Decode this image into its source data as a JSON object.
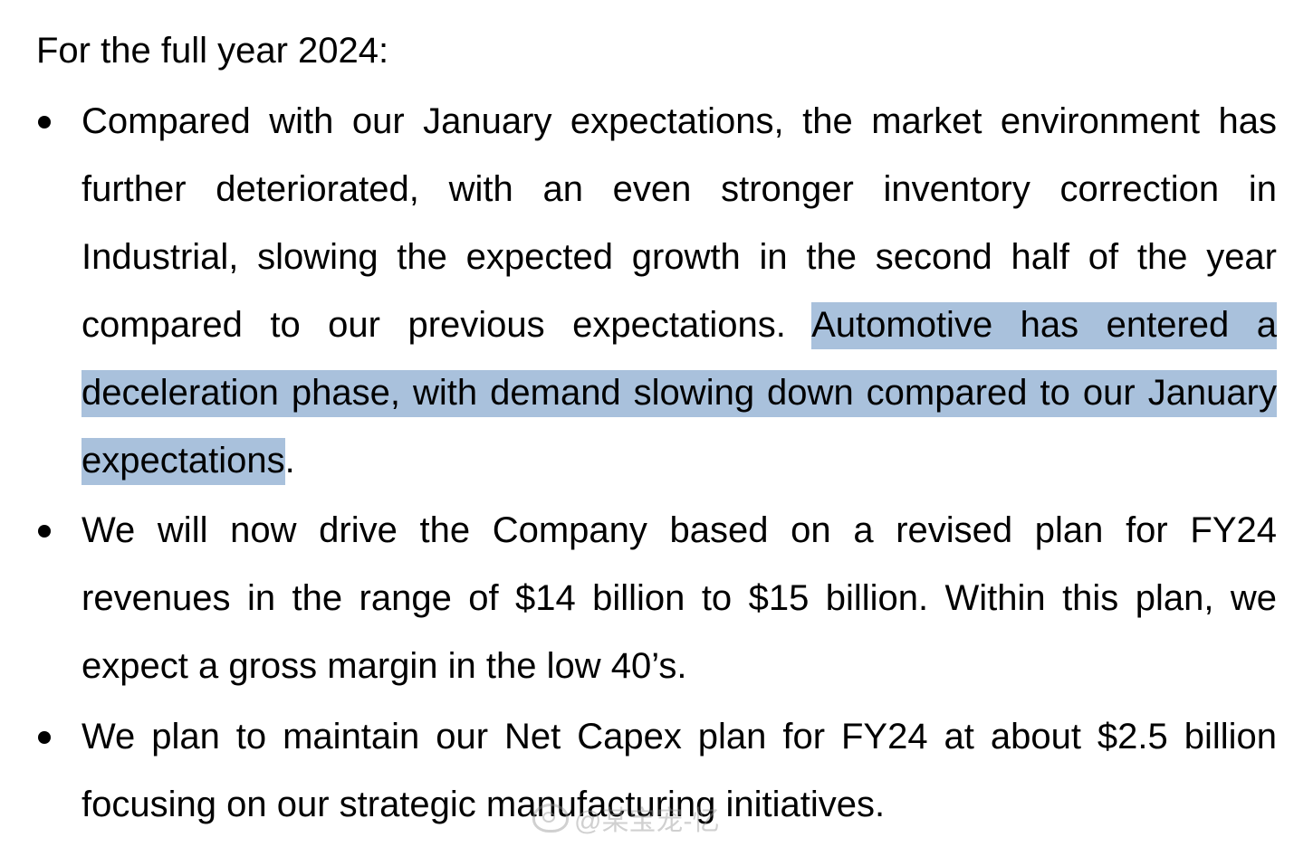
{
  "intro": "For the full year 2024:",
  "bullets": [
    {
      "lead": "Compared with our January expectations, the market environment has further deteriorated, with an even stronger inventory correction in Industrial, slowing the expected growth in the second half of the year compared to our previous expectations. ",
      "highlight": "Automotive has entered a deceleration phase, with demand slowing down compared to our January expectations",
      "tail": "."
    },
    {
      "text": "We will now drive the Company based on a revised plan for FY24 revenues in the range of $14 billion to $15 billion. Within this plan, we expect a gross margin in the low 40’s."
    },
    {
      "text": "We plan to maintain our Net Capex plan for FY24 at about $2.5 billion focusing on our strategic manufacturing initiatives."
    }
  ],
  "watermark": "@某宝宠-忆"
}
